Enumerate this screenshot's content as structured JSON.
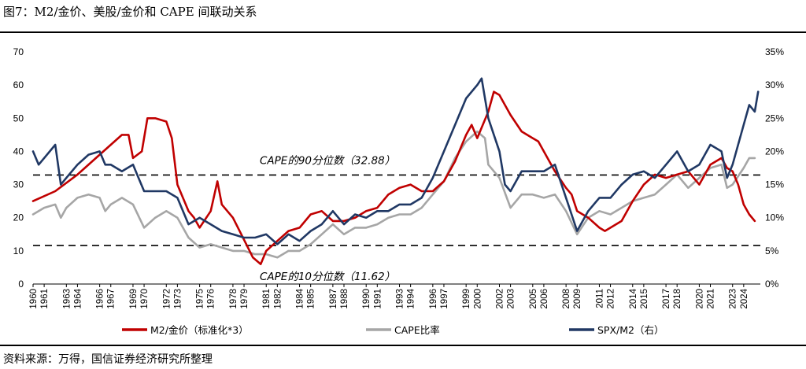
{
  "figure": {
    "title": "图7：M2/金价、美股/金价和 CAPE 间联动关系",
    "source": "资料来源：万得，国信证券经济研究所整理"
  },
  "chart_data": {
    "type": "line",
    "title": "图7：M2/金价、美股/金价和 CAPE 间联动关系",
    "left_axis": {
      "range": [
        0,
        70
      ],
      "ticks": [
        "0",
        "10",
        "20",
        "30",
        "40",
        "50",
        "60",
        "70"
      ]
    },
    "right_axis": {
      "range": [
        0,
        35
      ],
      "ticks": [
        "0%",
        "5%",
        "10%",
        "15%",
        "20%",
        "25%",
        "30%",
        "35%"
      ]
    },
    "x_range": [
      1960,
      2025.5
    ],
    "x_ticks": [
      "1960",
      "1961",
      "1963",
      "1964",
      "1966",
      "1967",
      "1969",
      "1970",
      "1972",
      "1973",
      "1975",
      "1976",
      "1978",
      "1979",
      "1981",
      "1982",
      "1984",
      "1985",
      "1987",
      "1988",
      "1990",
      "1991",
      "1993",
      "1994",
      "1996",
      "1997",
      "1999",
      "2000",
      "2002",
      "2003",
      "2005",
      "2006",
      "2008",
      "2009",
      "2011",
      "2012",
      "2014",
      "2015",
      "2017",
      "2018",
      "2020",
      "2021",
      "2023",
      "2024"
    ],
    "annotations": [
      {
        "label": "CAPE的90分位数（32.88）",
        "value": 32.88
      },
      {
        "label": "CAPE的10分位数（11.62）",
        "value": 11.62
      }
    ],
    "legend_position": "bottom",
    "series": [
      {
        "name": "M2/金价（标准化*3）",
        "axis": "left",
        "color": "#c00000",
        "points": [
          [
            1960,
            25
          ],
          [
            1962,
            28
          ],
          [
            1964,
            33
          ],
          [
            1966,
            39
          ],
          [
            1968,
            45
          ],
          [
            1968.6,
            45
          ],
          [
            1969,
            38
          ],
          [
            1969.8,
            40
          ],
          [
            1970.3,
            50
          ],
          [
            1971,
            50
          ],
          [
            1972,
            49
          ],
          [
            1972.5,
            44
          ],
          [
            1973,
            30
          ],
          [
            1974,
            22
          ],
          [
            1974.5,
            20
          ],
          [
            1975,
            17
          ],
          [
            1976,
            22
          ],
          [
            1976.6,
            31
          ],
          [
            1977,
            24
          ],
          [
            1978,
            20
          ],
          [
            1979.2,
            12
          ],
          [
            1979.8,
            8
          ],
          [
            1980.5,
            6
          ],
          [
            1981,
            10
          ],
          [
            1982,
            13
          ],
          [
            1983,
            16
          ],
          [
            1984,
            17
          ],
          [
            1985,
            21
          ],
          [
            1986,
            22
          ],
          [
            1987,
            19
          ],
          [
            1988,
            19
          ],
          [
            1989,
            20
          ],
          [
            1990,
            22
          ],
          [
            1991,
            23
          ],
          [
            1992,
            27
          ],
          [
            1993,
            29
          ],
          [
            1994,
            30
          ],
          [
            1995,
            28
          ],
          [
            1996,
            28
          ],
          [
            1997,
            31
          ],
          [
            1998,
            37
          ],
          [
            1999,
            45
          ],
          [
            1999.5,
            48
          ],
          [
            2000,
            44
          ],
          [
            2001,
            52
          ],
          [
            2001.5,
            58
          ],
          [
            2002,
            57
          ],
          [
            2002.5,
            54
          ],
          [
            2003,
            51
          ],
          [
            2004,
            46
          ],
          [
            2005,
            44
          ],
          [
            2005.5,
            43
          ],
          [
            2006,
            40
          ],
          [
            2007,
            34
          ],
          [
            2008,
            29
          ],
          [
            2008.5,
            27
          ],
          [
            2009,
            22
          ],
          [
            2010,
            20
          ],
          [
            2011,
            17
          ],
          [
            2011.5,
            16
          ],
          [
            2012,
            17
          ],
          [
            2013,
            19
          ],
          [
            2014,
            25
          ],
          [
            2015,
            30
          ],
          [
            2016,
            33
          ],
          [
            2017,
            32
          ],
          [
            2018,
            33
          ],
          [
            2019,
            34
          ],
          [
            2020,
            30
          ],
          [
            2021,
            36
          ],
          [
            2022,
            38
          ],
          [
            2022.5,
            35
          ],
          [
            2023,
            34
          ],
          [
            2023.5,
            30
          ],
          [
            2024,
            24
          ],
          [
            2024.5,
            21
          ],
          [
            2025,
            19
          ]
        ]
      },
      {
        "name": "CAPE比率",
        "axis": "left",
        "color": "#a6a6a6",
        "points": [
          [
            1960,
            21
          ],
          [
            1961,
            23
          ],
          [
            1962,
            24
          ],
          [
            1962.5,
            20
          ],
          [
            1963,
            23
          ],
          [
            1964,
            26
          ],
          [
            1965,
            27
          ],
          [
            1966,
            26
          ],
          [
            1966.5,
            22
          ],
          [
            1967,
            24
          ],
          [
            1968,
            26
          ],
          [
            1969,
            24
          ],
          [
            1970,
            17
          ],
          [
            1971,
            20
          ],
          [
            1972,
            22
          ],
          [
            1973,
            20
          ],
          [
            1974,
            14
          ],
          [
            1975,
            11
          ],
          [
            1976,
            12
          ],
          [
            1977,
            11
          ],
          [
            1978,
            10
          ],
          [
            1979,
            10
          ],
          [
            1980,
            9
          ],
          [
            1981,
            9
          ],
          [
            1982,
            8
          ],
          [
            1983,
            10
          ],
          [
            1984,
            10
          ],
          [
            1985,
            12
          ],
          [
            1986,
            15
          ],
          [
            1987,
            18
          ],
          [
            1988,
            15
          ],
          [
            1989,
            17
          ],
          [
            1990,
            17
          ],
          [
            1991,
            18
          ],
          [
            1992,
            20
          ],
          [
            1993,
            21
          ],
          [
            1994,
            21
          ],
          [
            1995,
            23
          ],
          [
            1996,
            27
          ],
          [
            1997,
            31
          ],
          [
            1998,
            38
          ],
          [
            1999,
            43
          ],
          [
            2000,
            46
          ],
          [
            2000.7,
            44
          ],
          [
            2001,
            36
          ],
          [
            2002,
            32
          ],
          [
            2003,
            23
          ],
          [
            2004,
            27
          ],
          [
            2005,
            27
          ],
          [
            2006,
            26
          ],
          [
            2007,
            27
          ],
          [
            2008,
            22
          ],
          [
            2009,
            15
          ],
          [
            2010,
            20
          ],
          [
            2011,
            22
          ],
          [
            2012,
            21
          ],
          [
            2013,
            23
          ],
          [
            2014,
            25
          ],
          [
            2015,
            26
          ],
          [
            2016,
            27
          ],
          [
            2017,
            30
          ],
          [
            2018,
            33
          ],
          [
            2019,
            29
          ],
          [
            2020,
            32
          ],
          [
            2021,
            35
          ],
          [
            2022,
            36
          ],
          [
            2022.5,
            29
          ],
          [
            2023,
            30
          ],
          [
            2024,
            35
          ],
          [
            2024.5,
            38
          ],
          [
            2025,
            38
          ]
        ]
      },
      {
        "name": "SPX/M2（右）",
        "axis": "right",
        "color": "#203864",
        "points": [
          [
            1960,
            20
          ],
          [
            1960.5,
            18
          ],
          [
            1961,
            19
          ],
          [
            1962,
            21
          ],
          [
            1962.5,
            15
          ],
          [
            1963,
            16
          ],
          [
            1964,
            18
          ],
          [
            1965,
            19.5
          ],
          [
            1966,
            20
          ],
          [
            1966.5,
            18
          ],
          [
            1967,
            18
          ],
          [
            1968,
            17
          ],
          [
            1969,
            18
          ],
          [
            1969.5,
            16
          ],
          [
            1970,
            14
          ],
          [
            1971,
            14
          ],
          [
            1972,
            14
          ],
          [
            1973,
            13
          ],
          [
            1974,
            9
          ],
          [
            1975,
            10
          ],
          [
            1976,
            9
          ],
          [
            1977,
            8
          ],
          [
            1978,
            7.5
          ],
          [
            1979,
            7
          ],
          [
            1980,
            7
          ],
          [
            1981,
            7.5
          ],
          [
            1982,
            6
          ],
          [
            1983,
            7.5
          ],
          [
            1984,
            6.5
          ],
          [
            1985,
            8
          ],
          [
            1986,
            9
          ],
          [
            1987,
            11
          ],
          [
            1988,
            9
          ],
          [
            1989,
            10.5
          ],
          [
            1990,
            10
          ],
          [
            1991,
            11
          ],
          [
            1992,
            11
          ],
          [
            1993,
            12
          ],
          [
            1994,
            12
          ],
          [
            1995,
            13
          ],
          [
            1996,
            16
          ],
          [
            1997,
            20
          ],
          [
            1998,
            24
          ],
          [
            1999,
            28
          ],
          [
            2000,
            30
          ],
          [
            2000.4,
            31
          ],
          [
            2001,
            25
          ],
          [
            2002,
            20
          ],
          [
            2002.5,
            15
          ],
          [
            2003,
            14
          ],
          [
            2004,
            17
          ],
          [
            2005,
            17
          ],
          [
            2006,
            17
          ],
          [
            2007,
            18
          ],
          [
            2008,
            13
          ],
          [
            2009,
            8
          ],
          [
            2010,
            11
          ],
          [
            2011,
            13
          ],
          [
            2012,
            13
          ],
          [
            2013,
            15
          ],
          [
            2014,
            16.5
          ],
          [
            2015,
            17
          ],
          [
            2016,
            16
          ],
          [
            2017,
            18
          ],
          [
            2018,
            20
          ],
          [
            2019,
            17
          ],
          [
            2020,
            18
          ],
          [
            2021,
            21
          ],
          [
            2022,
            20
          ],
          [
            2022.5,
            16
          ],
          [
            2023,
            18
          ],
          [
            2024,
            24
          ],
          [
            2024.5,
            27
          ],
          [
            2025,
            26
          ],
          [
            2025.3,
            29
          ]
        ]
      }
    ]
  }
}
